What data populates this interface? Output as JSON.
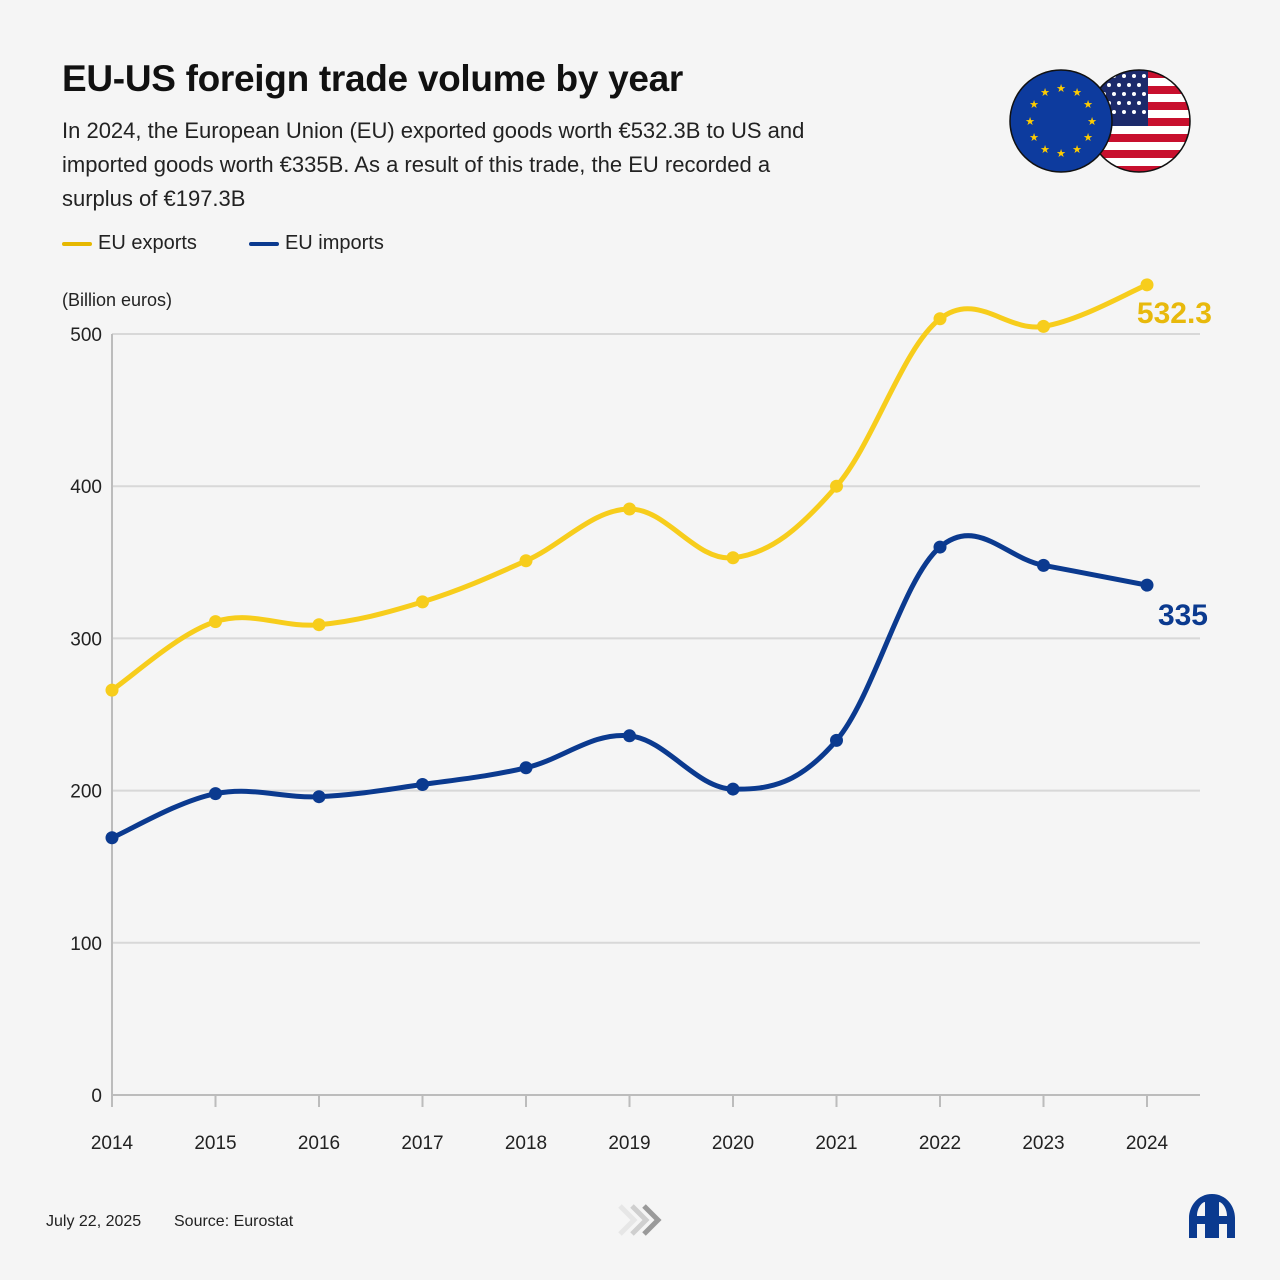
{
  "header": {
    "title": "EU-US foreign trade volume by year",
    "subtitle": "In 2024, the European Union (EU) exported goods worth €532.3B to US and imported goods worth €335B. As a result of this trade, the EU recorded a surplus of €197.3B"
  },
  "legend": {
    "exports_label": "EU exports",
    "imports_label": "EU imports"
  },
  "colors": {
    "exports": "#f7cd1c",
    "imports": "#0b3a8f",
    "exports_label": "#e8b90c",
    "grid": "#d8d8d8",
    "axis": "#bcbcbc"
  },
  "chart_data": {
    "type": "line",
    "title": "EU-US foreign trade volume by year",
    "ylabel": "(Billion euros)",
    "xlabel": "",
    "x": [
      "2014",
      "2015",
      "2016",
      "2017",
      "2018",
      "2019",
      "2020",
      "2021",
      "2022",
      "2023",
      "2024"
    ],
    "ylim": [
      0,
      500
    ],
    "yticks": [
      0,
      100,
      200,
      300,
      400,
      500
    ],
    "grid": true,
    "series": [
      {
        "name": "EU exports",
        "values": [
          266,
          311,
          309,
          324,
          351,
          385,
          353,
          400,
          510,
          505,
          532.3
        ],
        "end_label": "532.3"
      },
      {
        "name": "EU imports",
        "values": [
          169,
          198,
          196,
          204,
          215,
          236,
          201,
          233,
          360,
          348,
          335
        ],
        "end_label": "335"
      }
    ]
  },
  "footer": {
    "date": "July 22, 2025",
    "source": "Source: Eurostat"
  },
  "icons": {
    "flags": "eu-us-flags-icon",
    "arrows": "chevrons-icon",
    "logo": "aa-logo-icon"
  }
}
